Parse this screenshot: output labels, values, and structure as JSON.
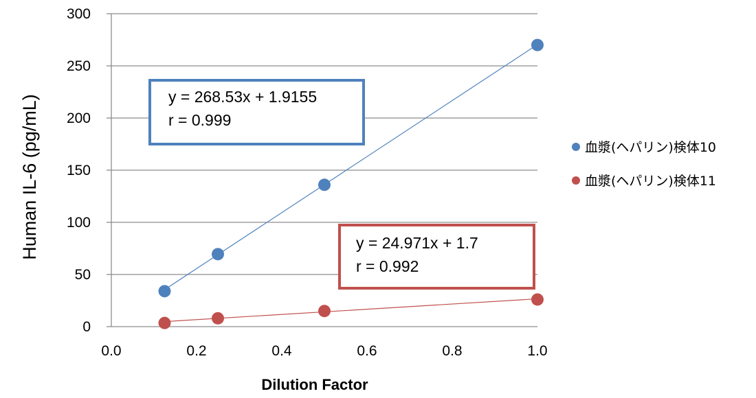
{
  "chart_data": {
    "type": "scatter",
    "xlabel": "Dilution Factor",
    "ylabel": "Human IL-6 (pg/mL)",
    "xlim": [
      0.0,
      1.0
    ],
    "ylim": [
      0,
      300
    ],
    "x_ticks": [
      "0.0",
      "0.2",
      "0.4",
      "0.6",
      "0.8",
      "1.0"
    ],
    "y_ticks": [
      "0",
      "50",
      "100",
      "150",
      "200",
      "250",
      "300"
    ],
    "grid": "horizontal",
    "legend_position": "right",
    "series": [
      {
        "name": "血漿(ヘパリン)検体10",
        "color": "#4f81bd",
        "x": [
          0.125,
          0.25,
          0.5,
          1.0
        ],
        "y": [
          34,
          69.5,
          136,
          270
        ],
        "trendline": {
          "slope": 268.53,
          "intercept": 1.9155
        },
        "annotation": {
          "equation": "y = 268.53x + 1.9155",
          "r": "r = 0.999"
        }
      },
      {
        "name": "血漿(ヘパリン)検体11",
        "color": "#c0504d",
        "x": [
          0.125,
          0.25,
          0.5,
          1.0
        ],
        "y": [
          3.5,
          8,
          15,
          26
        ],
        "trendline": {
          "slope": 24.971,
          "intercept": 1.7
        },
        "annotation": {
          "equation": "y = 24.971x + 1.7",
          "r": "r = 0.992"
        }
      }
    ]
  }
}
